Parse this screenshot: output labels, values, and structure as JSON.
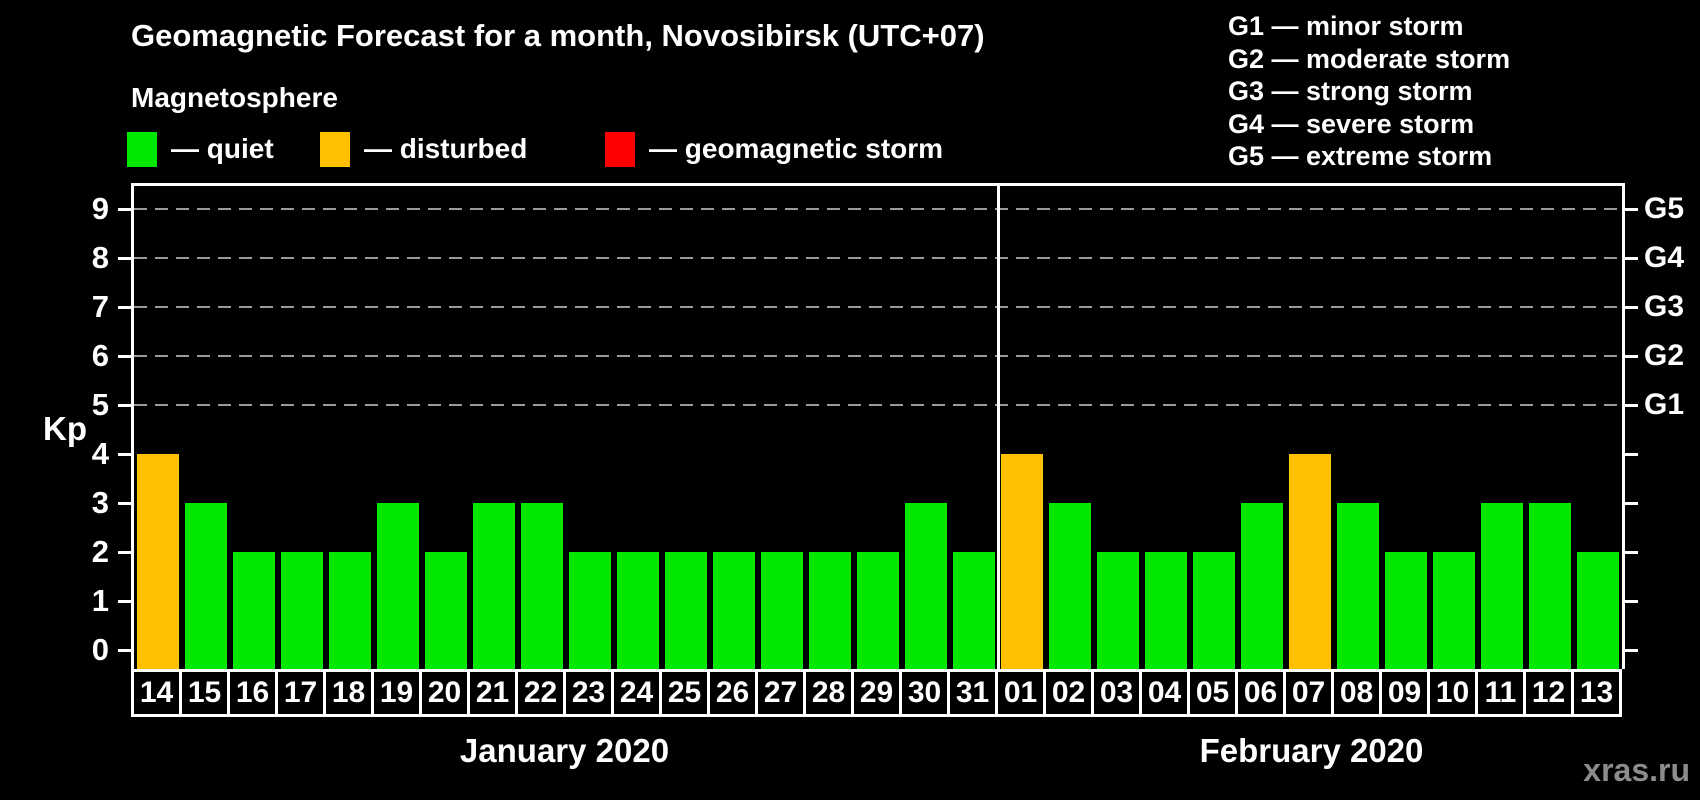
{
  "header": {
    "title": "Geomagnetic Forecast for a month, Novosibirsk (UTC+07)",
    "subtitle": "Magnetosphere"
  },
  "legend": {
    "items": [
      {
        "key": "quiet",
        "label": "— quiet",
        "color": "#00e800"
      },
      {
        "key": "disturbed",
        "label": "— disturbed",
        "color": "#ffc000"
      },
      {
        "key": "storm",
        "label": "— geomagnetic storm",
        "color": "#ff0000"
      }
    ]
  },
  "storm_scale_legend": {
    "items": [
      "G1 — minor storm",
      "G2 — moderate storm",
      "G3 — strong storm",
      "G4 — severe storm",
      "G5 — extreme storm"
    ]
  },
  "watermark": "xras.ru",
  "chart_data": {
    "type": "bar",
    "title": "Geomagnetic Forecast for a month, Novosibirsk (UTC+07)",
    "subtitle": "Magnetosphere",
    "ylabel": "Kp",
    "ylim": [
      0,
      9.5
    ],
    "yticks": [
      0,
      1,
      2,
      3,
      4,
      5,
      6,
      7,
      8,
      9
    ],
    "gridlines": [
      5,
      6,
      7,
      8,
      9
    ],
    "grid": "dashed horizontal lines at Kp 5 to 9 only",
    "legend_position": "top",
    "right_axis": [
      {
        "kp": 5,
        "label": "G1"
      },
      {
        "kp": 6,
        "label": "G2"
      },
      {
        "kp": 7,
        "label": "G3"
      },
      {
        "kp": 8,
        "label": "G4"
      },
      {
        "kp": 9,
        "label": "G5"
      }
    ],
    "status_colors": {
      "quiet": "#00e800",
      "disturbed": "#ffc000",
      "storm": "#ff0000"
    },
    "months": [
      {
        "label": "January 2020",
        "days": [
          {
            "day": "14",
            "kp": 4,
            "status": "disturbed"
          },
          {
            "day": "15",
            "kp": 3,
            "status": "quiet"
          },
          {
            "day": "16",
            "kp": 2,
            "status": "quiet"
          },
          {
            "day": "17",
            "kp": 2,
            "status": "quiet"
          },
          {
            "day": "18",
            "kp": 2,
            "status": "quiet"
          },
          {
            "day": "19",
            "kp": 3,
            "status": "quiet"
          },
          {
            "day": "20",
            "kp": 2,
            "status": "quiet"
          },
          {
            "day": "21",
            "kp": 3,
            "status": "quiet"
          },
          {
            "day": "22",
            "kp": 3,
            "status": "quiet"
          },
          {
            "day": "23",
            "kp": 2,
            "status": "quiet"
          },
          {
            "day": "24",
            "kp": 2,
            "status": "quiet"
          },
          {
            "day": "25",
            "kp": 2,
            "status": "quiet"
          },
          {
            "day": "26",
            "kp": 2,
            "status": "quiet"
          },
          {
            "day": "27",
            "kp": 2,
            "status": "quiet"
          },
          {
            "day": "28",
            "kp": 2,
            "status": "quiet"
          },
          {
            "day": "29",
            "kp": 2,
            "status": "quiet"
          },
          {
            "day": "30",
            "kp": 3,
            "status": "quiet"
          },
          {
            "day": "31",
            "kp": 2,
            "status": "quiet"
          }
        ]
      },
      {
        "label": "February 2020",
        "days": [
          {
            "day": "01",
            "kp": 4,
            "status": "disturbed"
          },
          {
            "day": "02",
            "kp": 3,
            "status": "quiet"
          },
          {
            "day": "03",
            "kp": 2,
            "status": "quiet"
          },
          {
            "day": "04",
            "kp": 2,
            "status": "quiet"
          },
          {
            "day": "05",
            "kp": 2,
            "status": "quiet"
          },
          {
            "day": "06",
            "kp": 3,
            "status": "quiet"
          },
          {
            "day": "07",
            "kp": 4,
            "status": "disturbed"
          },
          {
            "day": "08",
            "kp": 3,
            "status": "quiet"
          },
          {
            "day": "09",
            "kp": 2,
            "status": "quiet"
          },
          {
            "day": "10",
            "kp": 2,
            "status": "quiet"
          },
          {
            "day": "11",
            "kp": 3,
            "status": "quiet"
          },
          {
            "day": "12",
            "kp": 3,
            "status": "quiet"
          },
          {
            "day": "13",
            "kp": 2,
            "status": "quiet"
          }
        ]
      }
    ]
  }
}
